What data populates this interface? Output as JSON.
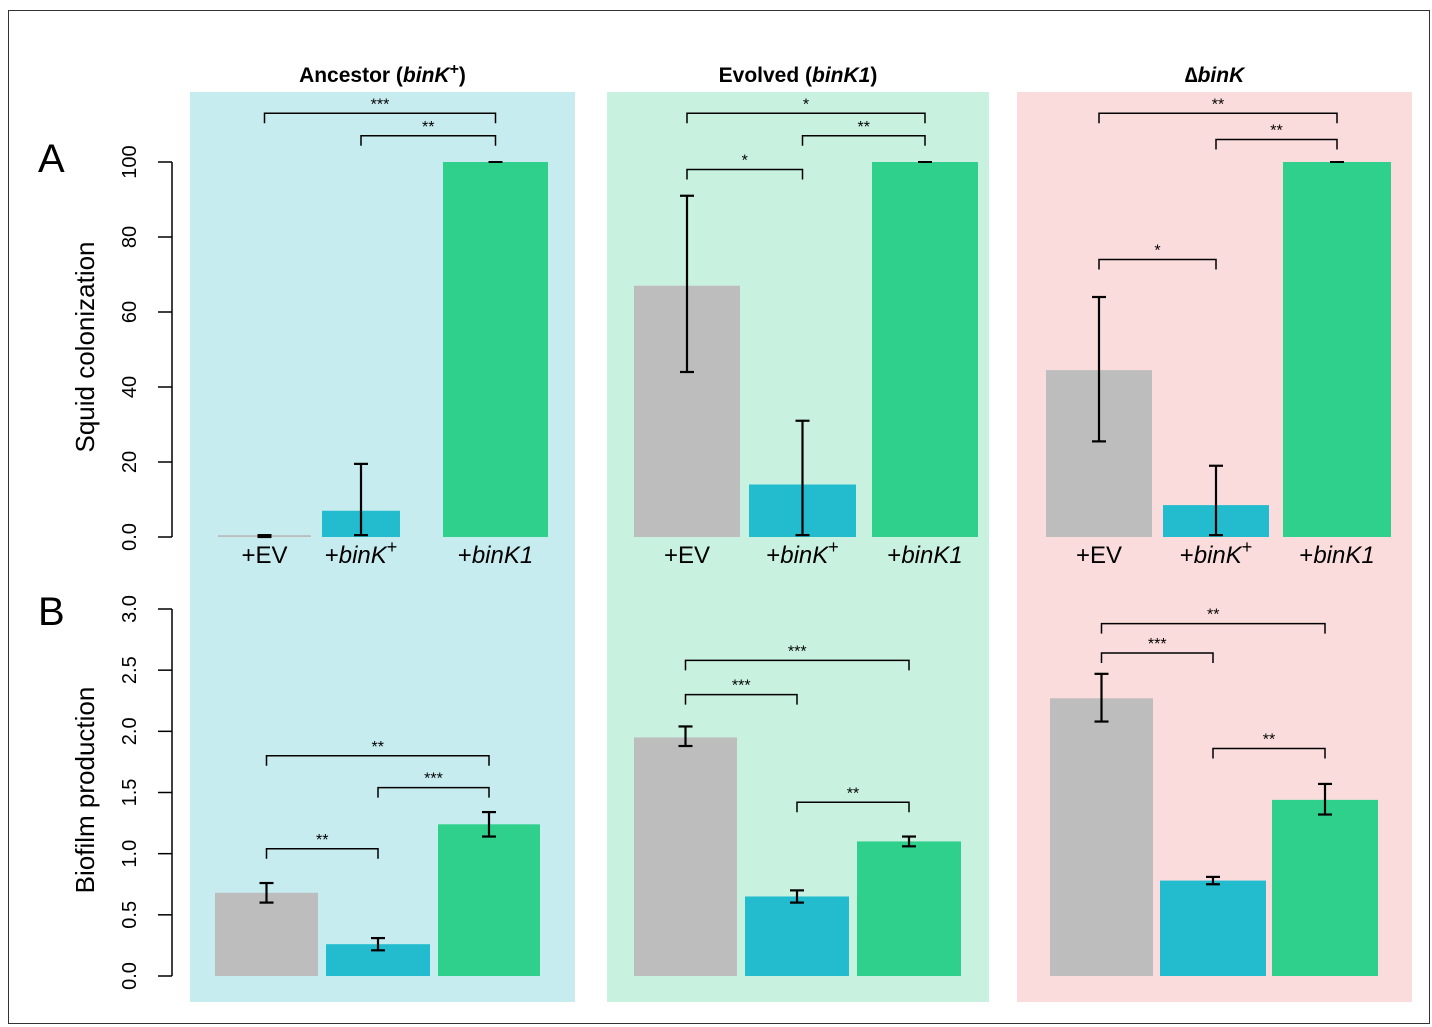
{
  "panel_labels": {
    "A": "A",
    "B": "B"
  },
  "column_titles": [
    [
      {
        "text": "Ancestor (",
        "italic": false
      },
      {
        "text": "binK",
        "italic": true
      },
      {
        "text": "+",
        "italic": false,
        "sup": true
      },
      {
        "text": ")",
        "italic": false
      }
    ],
    [
      {
        "text": "Evolved (",
        "italic": false
      },
      {
        "text": "binK1",
        "italic": true
      },
      {
        "text": ")",
        "italic": false
      }
    ],
    [
      {
        "text": "∆",
        "italic": false
      },
      {
        "text": "binK",
        "italic": true
      }
    ]
  ],
  "category_labels": [
    [
      {
        "text": "+EV",
        "italic": false
      }
    ],
    [
      {
        "text": "+",
        "italic": false
      },
      {
        "text": "binK",
        "italic": true
      },
      {
        "text": "+",
        "italic": false,
        "sup": true
      }
    ],
    [
      {
        "text": "+",
        "italic": false
      },
      {
        "text": "binK1",
        "italic": true
      }
    ]
  ],
  "colors": {
    "panel_backgrounds": [
      "#c6ecf0",
      "#c8f1e0",
      "#fbdcdc"
    ],
    "bars": [
      "#bdbdbd",
      "#22bcce",
      "#2fd08c"
    ]
  },
  "chart_data": [
    {
      "type": "bar",
      "panel": "A",
      "ylabel": "Squid colonization",
      "ylim": [
        0,
        100
      ],
      "yticks": [
        0,
        20,
        40,
        60,
        80,
        100
      ],
      "ytick_labels": [
        "0.0",
        "20",
        "40",
        "60",
        "80",
        "100"
      ],
      "groups": [
        {
          "values": [
            0.5,
            7,
            100
          ],
          "error_low": [
            0,
            0.5,
            100
          ],
          "error_high": [
            0.5,
            19.5,
            100
          ],
          "brackets": [
            {
              "from": 0,
              "to": 2,
              "label": "***",
              "y": 113
            },
            {
              "from": 1,
              "to": 2,
              "label": "**",
              "y": 107
            }
          ]
        },
        {
          "values": [
            67,
            14,
            100
          ],
          "error_low": [
            44,
            0.5,
            100
          ],
          "error_high": [
            91,
            31,
            100
          ],
          "brackets": [
            {
              "from": 0,
              "to": 2,
              "label": "*",
              "y": 113
            },
            {
              "from": 1,
              "to": 2,
              "label": "**",
              "y": 107
            },
            {
              "from": 0,
              "to": 1,
              "label": "*",
              "y": 98
            }
          ]
        },
        {
          "values": [
            44.5,
            8.5,
            100
          ],
          "error_low": [
            25.5,
            0.5,
            100
          ],
          "error_high": [
            64,
            19,
            100
          ],
          "brackets": [
            {
              "from": 0,
              "to": 2,
              "label": "**",
              "y": 113
            },
            {
              "from": 1,
              "to": 2,
              "label": "**",
              "y": 106
            },
            {
              "from": 0,
              "to": 1,
              "label": "*",
              "y": 74
            }
          ]
        }
      ]
    },
    {
      "type": "bar",
      "panel": "B",
      "ylabel": "Biofilm production",
      "ylim": [
        0,
        3
      ],
      "yticks": [
        0,
        0.5,
        1,
        1.5,
        2,
        2.5,
        3
      ],
      "ytick_labels": [
        "0.0",
        "0.5",
        "1.0",
        "1.5",
        "2.0",
        "2.5",
        "3.0"
      ],
      "groups": [
        {
          "values": [
            0.68,
            0.26,
            1.24
          ],
          "error_low": [
            0.6,
            0.21,
            1.14
          ],
          "error_high": [
            0.76,
            0.31,
            1.34
          ],
          "brackets": [
            {
              "from": 0,
              "to": 2,
              "label": "**",
              "y": 1.8
            },
            {
              "from": 1,
              "to": 2,
              "label": "***",
              "y": 1.54
            },
            {
              "from": 0,
              "to": 1,
              "label": "**",
              "y": 1.04
            }
          ]
        },
        {
          "values": [
            1.95,
            0.65,
            1.1
          ],
          "error_low": [
            1.88,
            0.6,
            1.06
          ],
          "error_high": [
            2.04,
            0.7,
            1.14
          ],
          "brackets": [
            {
              "from": 0,
              "to": 2,
              "label": "***",
              "y": 2.58
            },
            {
              "from": 0,
              "to": 1,
              "label": "***",
              "y": 2.3
            },
            {
              "from": 1,
              "to": 2,
              "label": "**",
              "y": 1.42
            }
          ]
        },
        {
          "values": [
            2.27,
            0.78,
            1.44
          ],
          "error_low": [
            2.08,
            0.75,
            1.32
          ],
          "error_high": [
            2.47,
            0.81,
            1.57
          ],
          "brackets": [
            {
              "from": 0,
              "to": 2,
              "label": "**",
              "y": 2.88
            },
            {
              "from": 0,
              "to": 1,
              "label": "***",
              "y": 2.64
            },
            {
              "from": 1,
              "to": 2,
              "label": "**",
              "y": 1.86
            }
          ]
        }
      ]
    }
  ]
}
